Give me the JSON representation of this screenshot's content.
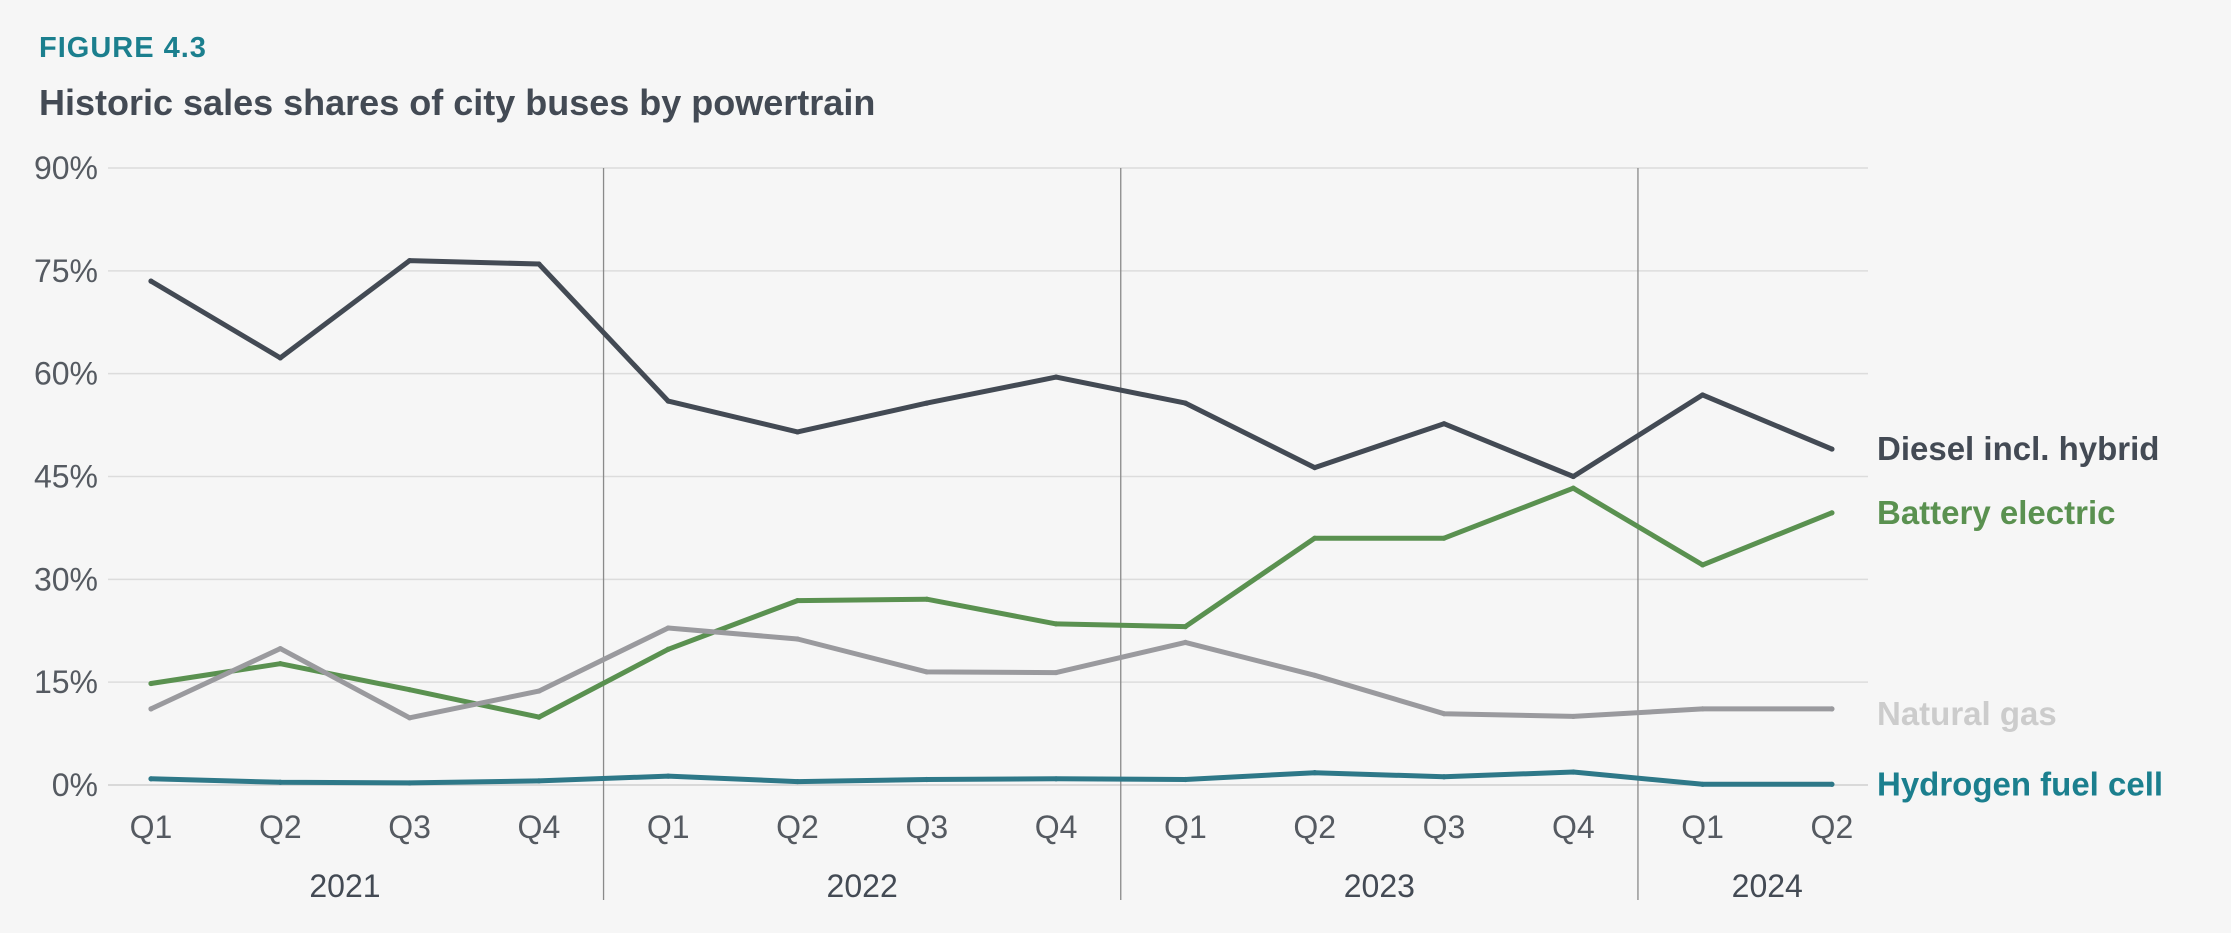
{
  "figure_label": "FIGURE 4.3",
  "chart_data": {
    "type": "line",
    "title": "Historic sales shares of city buses by powertrain",
    "xlabel": "",
    "ylabel": "",
    "ylim": [
      0,
      90
    ],
    "yticks": [
      0,
      15,
      30,
      45,
      60,
      75,
      90
    ],
    "ytick_labels": [
      "0%",
      "15%",
      "30%",
      "45%",
      "60%",
      "75%",
      "90%"
    ],
    "categories": [
      "Q1",
      "Q2",
      "Q3",
      "Q4",
      "Q1",
      "Q2",
      "Q3",
      "Q4",
      "Q1",
      "Q2",
      "Q3",
      "Q4",
      "Q1",
      "Q2"
    ],
    "year_groups": [
      {
        "label": "2021",
        "start": 0,
        "end": 3
      },
      {
        "label": "2022",
        "start": 4,
        "end": 7
      },
      {
        "label": "2023",
        "start": 8,
        "end": 11
      },
      {
        "label": "2024",
        "start": 12,
        "end": 13
      }
    ],
    "grid": "horizontal",
    "legend": "right, labels at line ends",
    "series": [
      {
        "name": "Diesel incl. hybrid",
        "color": "#434a54",
        "values": [
          73.5,
          62.3,
          76.5,
          76.0,
          56.0,
          51.5,
          55.7,
          59.5,
          55.7,
          46.3,
          52.7,
          45.0,
          56.9,
          49.0
        ]
      },
      {
        "name": "Battery electric",
        "color": "#5a9150",
        "values": [
          14.8,
          17.7,
          13.9,
          9.9,
          19.8,
          26.9,
          27.1,
          23.5,
          23.1,
          36.0,
          36.0,
          43.3,
          32.1,
          39.7
        ]
      },
      {
        "name": "Natural gas",
        "color": "#9a9a9e",
        "label_color": "#cccccc",
        "values": [
          11.1,
          19.9,
          9.8,
          13.7,
          22.9,
          21.3,
          16.5,
          16.4,
          20.8,
          16.0,
          10.4,
          10.0,
          11.1,
          11.1
        ]
      },
      {
        "name": "Hydrogen fuel cell",
        "color": "#2e7888",
        "label_color": "#1b7f8e",
        "values": [
          0.9,
          0.4,
          0.3,
          0.6,
          1.3,
          0.5,
          0.8,
          0.9,
          0.8,
          1.8,
          1.2,
          1.9,
          0.1,
          0.1
        ]
      }
    ]
  }
}
